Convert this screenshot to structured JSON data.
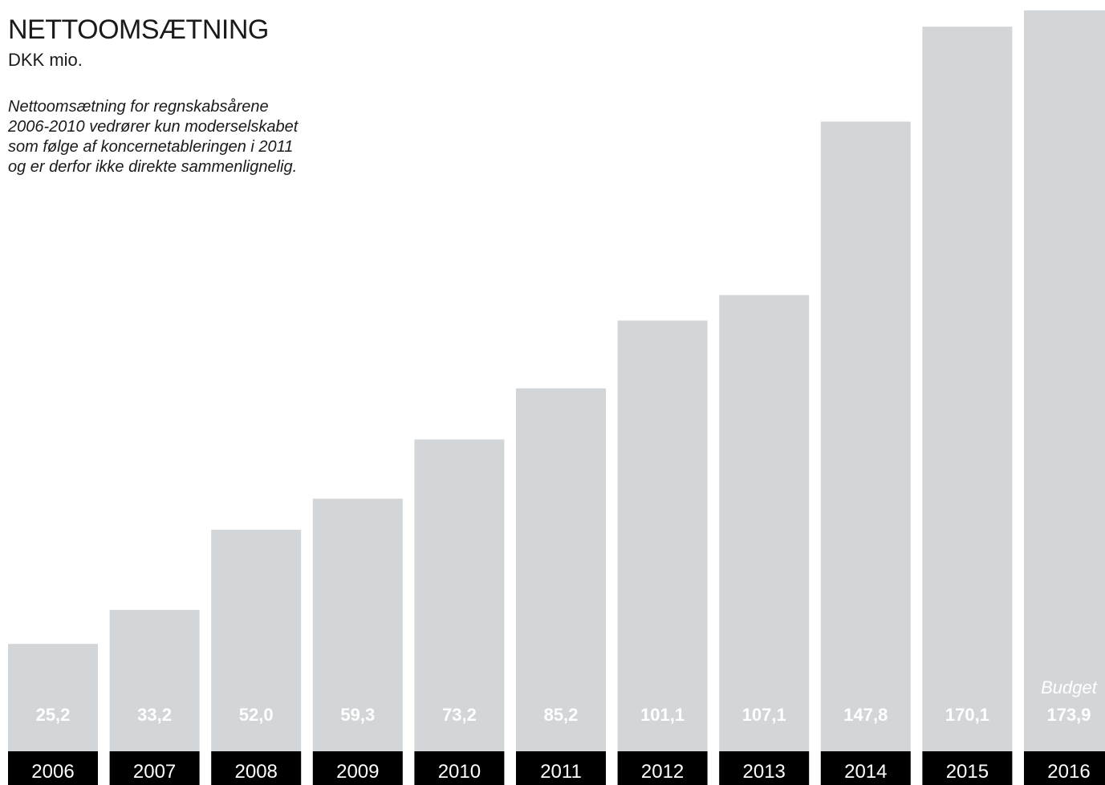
{
  "chart_data": {
    "type": "bar",
    "title": "NETTOOMSÆTNING",
    "subtitle": "DKK mio.",
    "note_lines": [
      "Nettoomsætning for regnskabsårene",
      "2006-2010 vedrører kun moderselskabet",
      "som følge af koncernetableringen i 2011",
      "og er derfor ikke direkte sammenlignelig."
    ],
    "categories": [
      "2006",
      "2007",
      "2008",
      "2009",
      "2010",
      "2011",
      "2012",
      "2013",
      "2014",
      "2015",
      "2016"
    ],
    "values": [
      25.2,
      33.2,
      52.0,
      59.3,
      73.2,
      85.2,
      101.1,
      107.1,
      147.8,
      170.1,
      173.9
    ],
    "value_labels": [
      "25,2",
      "33,2",
      "52,0",
      "59,3",
      "73,2",
      "85,2",
      "101,1",
      "107,1",
      "147,8",
      "170,1",
      "173,9"
    ],
    "annotations": [
      {
        "category": "2016",
        "text": "Budget"
      }
    ],
    "xlabel": "",
    "ylabel": "",
    "ylim": [
      0,
      180
    ],
    "grid": false,
    "colors": {
      "bar": "#d3d6d8",
      "year_box": "#000000",
      "label_text": "#ffffff",
      "title_text": "#1a1a1a"
    }
  }
}
